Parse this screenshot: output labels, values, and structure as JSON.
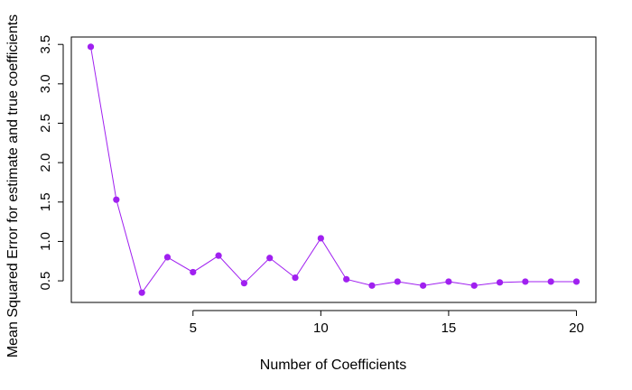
{
  "chart_data": {
    "type": "line",
    "title": "",
    "xlabel": "Number of Coefficients",
    "ylabel": "Mean Squared Error for estimate and true coefficients",
    "x": [
      1,
      2,
      3,
      4,
      5,
      6,
      7,
      8,
      9,
      10,
      11,
      12,
      13,
      14,
      15,
      16,
      17,
      18,
      19,
      20
    ],
    "series": [
      {
        "values": [
          3.47,
          1.53,
          0.35,
          0.8,
          0.61,
          0.82,
          0.47,
          0.79,
          0.54,
          1.04,
          0.52,
          0.44,
          0.49,
          0.44,
          0.49,
          0.44,
          0.48,
          0.49,
          0.49,
          0.49
        ]
      }
    ],
    "xlim": [
      0.24,
      20.76
    ],
    "ylim": [
      0.226,
      3.594
    ],
    "xticks": [
      5,
      10,
      15,
      20
    ],
    "xtick_labels": [
      "5",
      "10",
      "15",
      "20"
    ],
    "yticks": [
      0.5,
      1.0,
      1.5,
      2.0,
      2.5,
      3.0,
      3.5
    ],
    "ytick_labels": [
      "0.5",
      "1.0",
      "1.5",
      "2.0",
      "2.5",
      "3.0",
      "3.5"
    ],
    "grid": false,
    "colors": {
      "line": "#a020f0",
      "point": "#a020f0",
      "axis": "#000000"
    }
  }
}
